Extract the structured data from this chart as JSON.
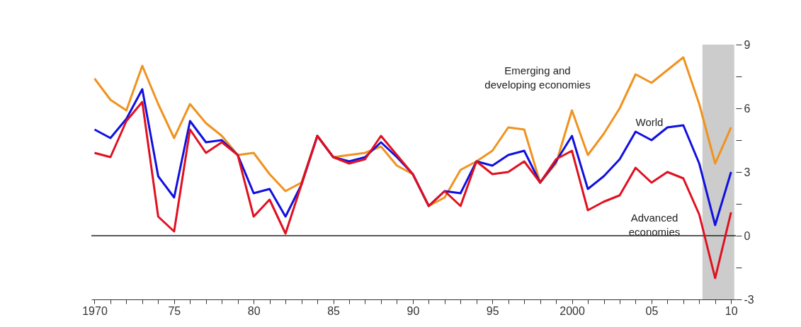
{
  "chart_data": {
    "type": "line",
    "x": [
      1970,
      1971,
      1972,
      1973,
      1974,
      1975,
      1976,
      1977,
      1978,
      1979,
      1980,
      1981,
      1982,
      1983,
      1984,
      1985,
      1986,
      1987,
      1988,
      1989,
      1990,
      1991,
      1992,
      1993,
      1994,
      1995,
      1996,
      1997,
      1998,
      1999,
      2000,
      2001,
      2002,
      2003,
      2004,
      2005,
      2006,
      2007,
      2008,
      2009,
      2010
    ],
    "series": [
      {
        "name": "Emerging and developing economies",
        "color": "#f0921e",
        "values": [
          7.4,
          6.4,
          5.9,
          8.0,
          6.2,
          4.6,
          6.2,
          5.3,
          4.7,
          3.8,
          3.9,
          2.9,
          2.1,
          2.5,
          4.7,
          3.7,
          3.8,
          3.9,
          4.2,
          3.3,
          2.9,
          1.4,
          1.8,
          3.1,
          3.5,
          4.0,
          5.1,
          5.0,
          2.5,
          3.4,
          5.9,
          3.8,
          4.8,
          6.0,
          7.6,
          7.2,
          7.8,
          8.4,
          6.2,
          3.4,
          5.1
        ]
      },
      {
        "name": "World",
        "color": "#1010e0",
        "values": [
          5.0,
          4.6,
          5.5,
          6.9,
          2.8,
          1.8,
          5.4,
          4.4,
          4.5,
          3.8,
          2.0,
          2.2,
          0.9,
          2.4,
          4.7,
          3.7,
          3.5,
          3.7,
          4.4,
          3.7,
          2.9,
          1.4,
          2.1,
          2.0,
          3.5,
          3.3,
          3.8,
          4.0,
          2.5,
          3.5,
          4.7,
          2.2,
          2.8,
          3.6,
          4.9,
          4.5,
          5.1,
          5.2,
          3.4,
          0.5,
          3.0
        ]
      },
      {
        "name": "Advanced economies",
        "color": "#e01020",
        "values": [
          3.9,
          3.7,
          5.4,
          6.3,
          0.9,
          0.2,
          5.0,
          3.9,
          4.4,
          3.8,
          0.9,
          1.7,
          0.1,
          2.4,
          4.7,
          3.7,
          3.4,
          3.6,
          4.7,
          3.8,
          2.9,
          1.4,
          2.1,
          1.4,
          3.5,
          2.9,
          3.0,
          3.5,
          2.5,
          3.6,
          4.0,
          1.2,
          1.6,
          1.9,
          3.2,
          2.5,
          3.0,
          2.7,
          1.0,
          -2.0,
          1.1
        ]
      }
    ],
    "xlim": [
      1969.8,
      2010.3
    ],
    "xticks": [
      1970,
      {
        "value": 1971,
        "label": null
      },
      {
        "value": 1972,
        "label": null
      },
      {
        "value": 1973,
        "label": null
      },
      {
        "value": 1974,
        "label": null
      },
      {
        "value": 1975,
        "label": "75"
      },
      {
        "value": 1976,
        "label": null
      },
      {
        "value": 1977,
        "label": null
      },
      {
        "value": 1978,
        "label": null
      },
      {
        "value": 1979,
        "label": null
      },
      {
        "value": 1980,
        "label": "80"
      },
      {
        "value": 1981,
        "label": null
      },
      {
        "value": 1982,
        "label": null
      },
      {
        "value": 1983,
        "label": null
      },
      {
        "value": 1984,
        "label": null
      },
      {
        "value": 1985,
        "label": "85"
      },
      {
        "value": 1986,
        "label": null
      },
      {
        "value": 1987,
        "label": null
      },
      {
        "value": 1988,
        "label": null
      },
      {
        "value": 1989,
        "label": null
      },
      {
        "value": 1990,
        "label": "90"
      },
      {
        "value": 1991,
        "label": null
      },
      {
        "value": 1992,
        "label": null
      },
      {
        "value": 1993,
        "label": null
      },
      {
        "value": 1994,
        "label": null
      },
      {
        "value": 1995,
        "label": "95"
      },
      {
        "value": 1996,
        "label": null
      },
      {
        "value": 1997,
        "label": null
      },
      {
        "value": 1998,
        "label": null
      },
      {
        "value": 1999,
        "label": null
      },
      2000,
      {
        "value": 2001,
        "label": null
      },
      {
        "value": 2002,
        "label": null
      },
      {
        "value": 2003,
        "label": null
      },
      {
        "value": 2004,
        "label": null
      },
      {
        "value": 2005,
        "label": "05"
      },
      {
        "value": 2006,
        "label": null
      },
      {
        "value": 2007,
        "label": null
      },
      {
        "value": 2008,
        "label": null
      },
      {
        "value": 2009,
        "label": null
      },
      {
        "value": 2010,
        "label": "10"
      }
    ],
    "ylim": [
      -3,
      9
    ],
    "yticks": [
      -3,
      {
        "value": -1.5,
        "label": null
      },
      0,
      {
        "value": 1.5,
        "label": null
      },
      3,
      {
        "value": 4.5,
        "label": null
      },
      6,
      {
        "value": 7.5,
        "label": null
      },
      9
    ],
    "ref_lines": [
      {
        "axis": "y",
        "value": 0,
        "color": "#222222"
      }
    ],
    "bands": [
      {
        "axis": "x",
        "from": 2008.2,
        "to": 2010.2,
        "color": "#cccccc"
      }
    ],
    "grid": false,
    "legend": false
  }
}
